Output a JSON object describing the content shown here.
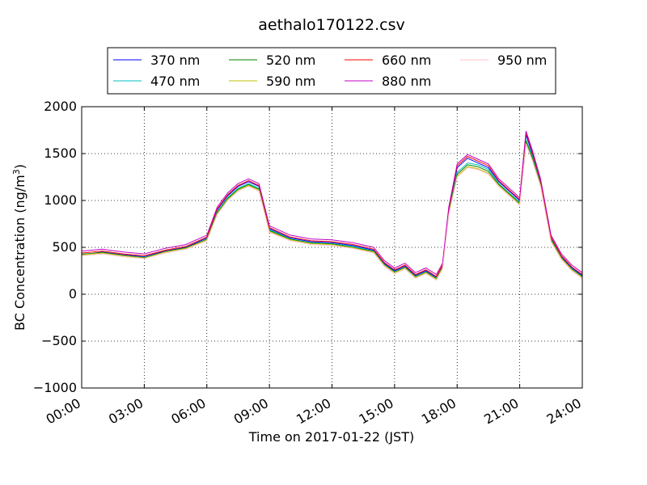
{
  "chart_data": {
    "type": "line",
    "title": "aethalo170122.csv",
    "xlabel": "Time on 2017-01-22 (JST)",
    "ylabel_main": "BC Concentration (ng/m",
    "ylabel_sup": "3",
    "ylabel_close": ")",
    "x_ticks": [
      "00:00",
      "03:00",
      "06:00",
      "09:00",
      "12:00",
      "15:00",
      "18:00",
      "21:00",
      "24:00"
    ],
    "y_ticks": [
      "−1000",
      "−500",
      "0",
      "500",
      "1000",
      "1500",
      "2000"
    ],
    "xlim_hours": [
      0,
      24
    ],
    "ylim": [
      -1000,
      2000
    ],
    "grid": true,
    "legend_position": "top",
    "x_hours": [
      0.0,
      1.0,
      2.0,
      3.0,
      4.0,
      5.0,
      6.0,
      6.5,
      7.0,
      7.5,
      8.0,
      8.5,
      9.0,
      10.0,
      11.0,
      12.0,
      13.0,
      14.0,
      14.5,
      15.0,
      15.5,
      16.0,
      16.5,
      17.0,
      17.3,
      17.6,
      18.0,
      18.5,
      19.0,
      19.5,
      20.0,
      20.5,
      21.0,
      21.3,
      21.6,
      22.0,
      22.5,
      23.0,
      23.5,
      24.0
    ],
    "series": [
      {
        "name": "370 nm",
        "color": "#0000ff",
        "values": [
          420,
          450,
          420,
          400,
          460,
          500,
          600,
          900,
          1050,
          1150,
          1200,
          1150,
          700,
          600,
          560,
          550,
          520,
          470,
          330,
          250,
          300,
          200,
          250,
          180,
          300,
          900,
          1350,
          1450,
          1400,
          1350,
          1200,
          1100,
          1000,
          1700,
          1500,
          1200,
          600,
          400,
          280,
          200
        ]
      },
      {
        "name": "470 nm",
        "color": "#00c0c0",
        "values": [
          430,
          440,
          410,
          395,
          450,
          490,
          590,
          880,
          1030,
          1130,
          1180,
          1130,
          690,
          590,
          550,
          540,
          510,
          460,
          320,
          240,
          290,
          190,
          240,
          170,
          290,
          880,
          1300,
          1400,
          1380,
          1330,
          1180,
          1080,
          980,
          1650,
          1480,
          1180,
          590,
          390,
          270,
          190
        ]
      },
      {
        "name": "520 nm",
        "color": "#008000",
        "values": [
          425,
          445,
          415,
          390,
          455,
          495,
          585,
          870,
          1020,
          1120,
          1170,
          1120,
          680,
          585,
          545,
          535,
          500,
          455,
          315,
          235,
          285,
          185,
          235,
          165,
          285,
          870,
          1280,
          1380,
          1360,
          1310,
          1170,
          1070,
          970,
          1630,
          1460,
          1170,
          580,
          385,
          265,
          185
        ]
      },
      {
        "name": "590 nm",
        "color": "#bfbf00",
        "values": [
          420,
          440,
          410,
          385,
          450,
          490,
          580,
          860,
          1010,
          1110,
          1160,
          1110,
          670,
          580,
          540,
          530,
          495,
          450,
          310,
          230,
          280,
          180,
          230,
          160,
          280,
          860,
          1260,
          1360,
          1340,
          1290,
          1160,
          1060,
          960,
          1610,
          1440,
          1160,
          570,
          380,
          260,
          180
        ]
      },
      {
        "name": "660 nm",
        "color": "#ff0000",
        "values": [
          440,
          460,
          430,
          410,
          470,
          510,
          610,
          910,
          1060,
          1160,
          1210,
          1160,
          710,
          610,
          570,
          560,
          530,
          480,
          340,
          260,
          310,
          210,
          260,
          190,
          310,
          910,
          1370,
          1470,
          1420,
          1370,
          1210,
          1110,
          1010,
          1720,
          1520,
          1210,
          610,
          410,
          290,
          210
        ]
      },
      {
        "name": "880 nm",
        "color": "#c000c0",
        "values": [
          460,
          480,
          450,
          430,
          490,
          530,
          630,
          930,
          1080,
          1180,
          1230,
          1180,
          730,
          630,
          590,
          580,
          550,
          500,
          360,
          280,
          330,
          230,
          280,
          210,
          330,
          930,
          1390,
          1490,
          1440,
          1390,
          1230,
          1130,
          1030,
          1740,
          1540,
          1230,
          630,
          430,
          310,
          230
        ]
      },
      {
        "name": "950 nm",
        "color": "#ffc0cb",
        "values": [
          410,
          430,
          400,
          380,
          440,
          480,
          570,
          850,
          1000,
          1100,
          1150,
          1100,
          660,
          570,
          530,
          520,
          490,
          440,
          300,
          220,
          270,
          170,
          220,
          150,
          270,
          850,
          1250,
          1350,
          1330,
          1280,
          1150,
          1050,
          950,
          1600,
          1430,
          1150,
          560,
          370,
          250,
          170
        ]
      }
    ]
  }
}
